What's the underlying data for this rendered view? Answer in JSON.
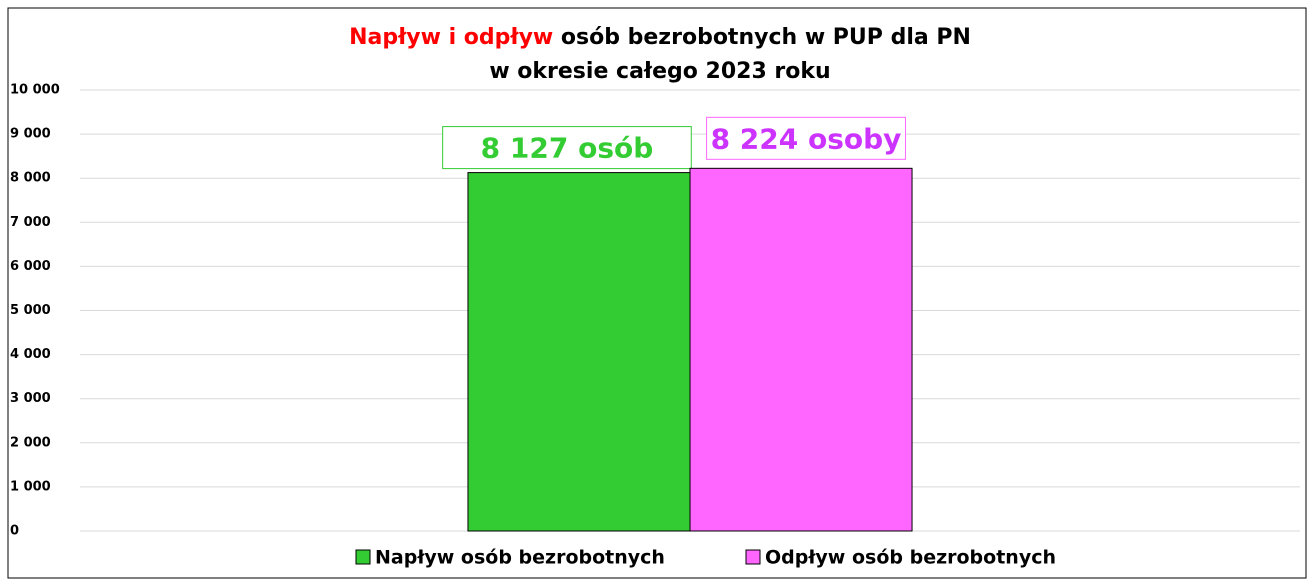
{
  "chart_data": {
    "type": "bar",
    "title_highlight": "Napływ i odpływ",
    "title_highlight_color": "#ff0000",
    "title": "osób bezrobotnych w PUP dla PN",
    "subtitle": "w okresie całego 2023 roku",
    "categories": [
      null
    ],
    "series": [
      {
        "name": "Napływ osób bezrobotnych",
        "color": "#33cc33",
        "label_color": "#33cc33",
        "values": [
          8127
        ],
        "value_labels": [
          "8 127 osób"
        ]
      },
      {
        "name": "Odpływ osób bezrobotnych",
        "color": "#ff66ff",
        "label_color": "#cc33ff",
        "values": [
          8224
        ],
        "value_labels": [
          "8 224 osoby"
        ]
      }
    ],
    "ylim": [
      0,
      10000
    ],
    "yticks": [
      {
        "value": 0,
        "label": "0"
      },
      {
        "value": 1000,
        "label": "1 000"
      },
      {
        "value": 2000,
        "label": "2 000"
      },
      {
        "value": 3000,
        "label": "3 000"
      },
      {
        "value": 4000,
        "label": "4 000"
      },
      {
        "value": 5000,
        "label": "5 000"
      },
      {
        "value": 6000,
        "label": "6 000"
      },
      {
        "value": 7000,
        "label": "7 000"
      },
      {
        "value": 8000,
        "label": "8 000"
      },
      {
        "value": 9000,
        "label": "9 000"
      },
      {
        "value": 10000,
        "label": "10 000"
      }
    ],
    "grid": true,
    "legend": "bottom"
  }
}
